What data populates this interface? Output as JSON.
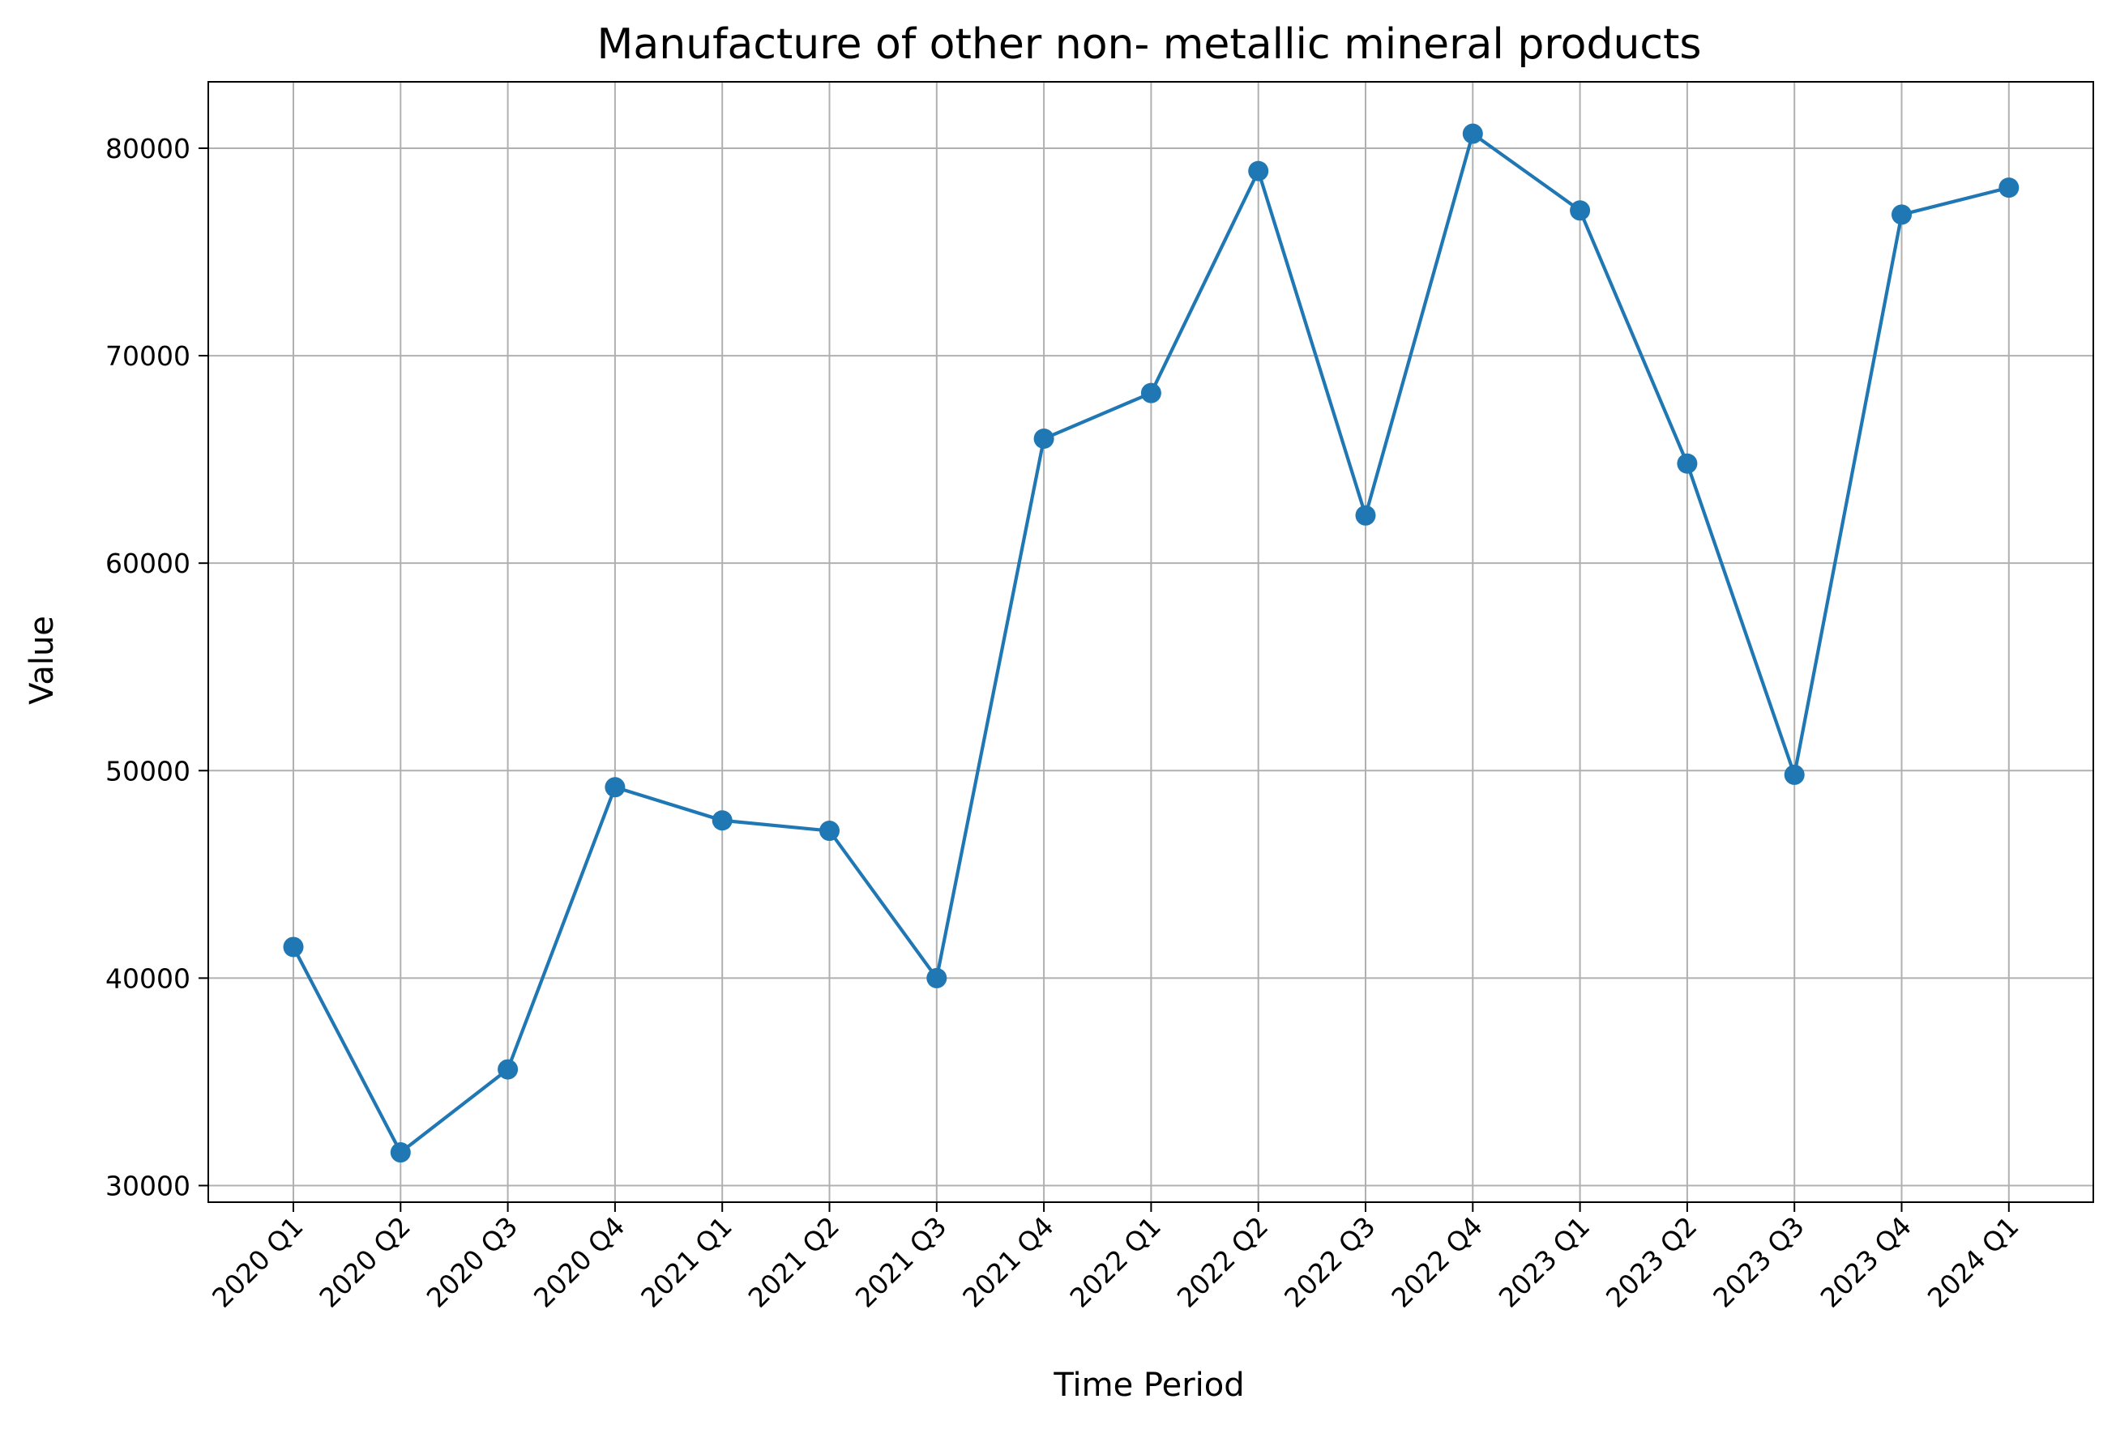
{
  "chart_data": {
    "type": "line",
    "title": "Manufacture of other non- metallic mineral products",
    "xlabel": "Time Period",
    "ylabel": "Value",
    "categories": [
      "2020 Q1",
      "2020 Q2",
      "2020 Q3",
      "2020 Q4",
      "2021 Q1",
      "2021 Q2",
      "2021 Q3",
      "2021 Q4",
      "2022 Q1",
      "2022 Q2",
      "2022 Q3",
      "2022 Q4",
      "2023 Q1",
      "2023 Q2",
      "2023 Q3",
      "2023 Q4",
      "2024 Q1"
    ],
    "series": [
      {
        "values": [
          41500,
          31600,
          35600,
          49200,
          47600,
          47100,
          40000,
          66000,
          68200,
          78900,
          62300,
          80700,
          77000,
          64800,
          49800,
          76800,
          78100
        ],
        "color": "#1f77b4"
      }
    ],
    "ylim": [
      29200,
      83200
    ],
    "yticks": [
      30000,
      40000,
      50000,
      60000,
      70000,
      80000
    ],
    "ytick_labels": [
      "30000",
      "40000",
      "50000",
      "60000",
      "70000",
      "80000"
    ],
    "grid": true,
    "marker": "circle"
  }
}
